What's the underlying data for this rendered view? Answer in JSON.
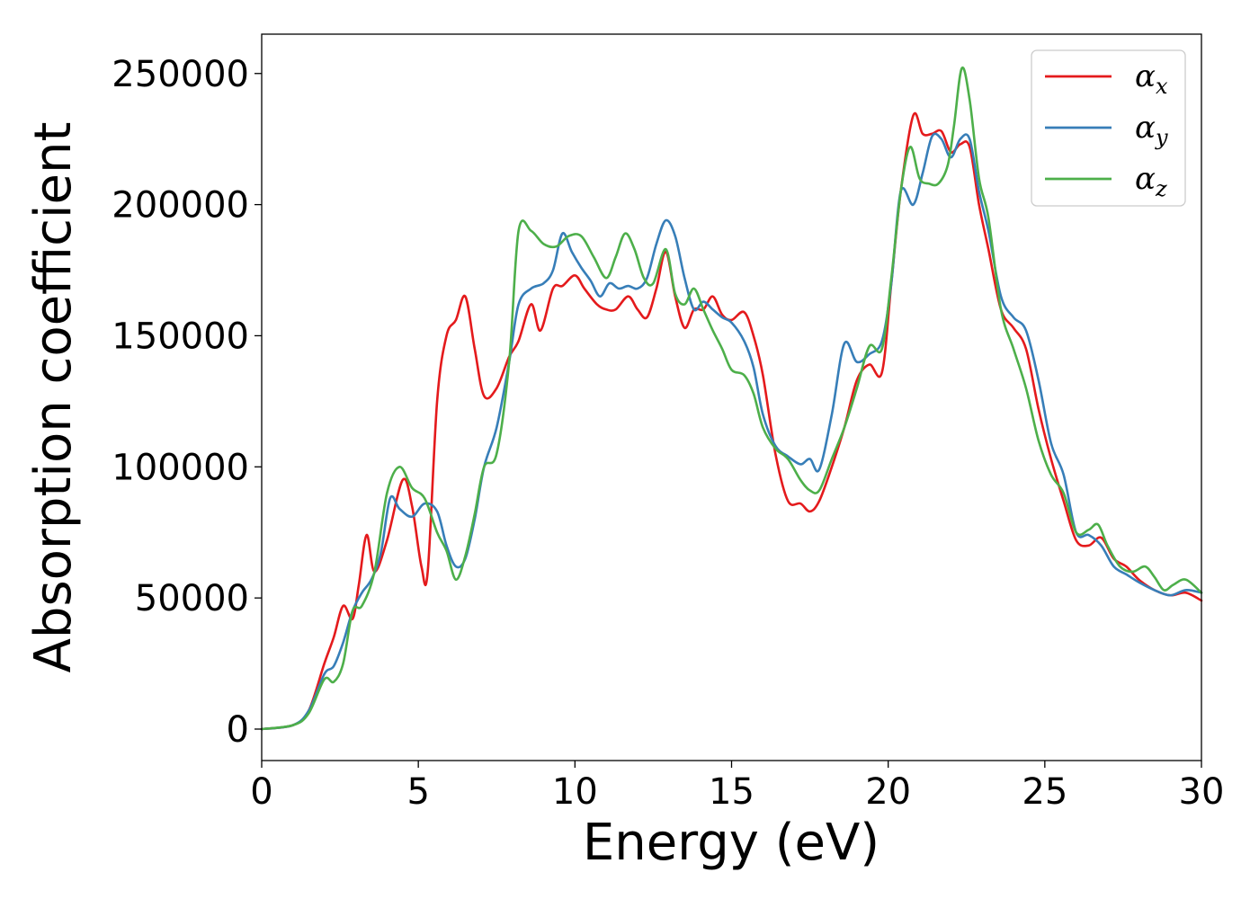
{
  "chart_data": {
    "type": "line",
    "title": "",
    "xlabel": "Energy (eV)",
    "ylabel": "Absorption coefficient",
    "xlim": [
      0,
      30
    ],
    "ylim": [
      -12000,
      265000
    ],
    "xticks": [
      "0",
      "5",
      "10",
      "15",
      "20",
      "25",
      "30"
    ],
    "xtick_values": [
      0,
      5,
      10,
      15,
      20,
      25,
      30
    ],
    "yticks": [
      "0",
      "50000",
      "100000",
      "150000",
      "200000",
      "250000"
    ],
    "ytick_values": [
      0,
      50000,
      100000,
      150000,
      200000,
      250000
    ],
    "grid": false,
    "legend_position": "top-right",
    "series": [
      {
        "name": "α",
        "subscript": "x",
        "color": "#e41a1c",
        "x": [
          0,
          1,
          1.5,
          2,
          2.3,
          2.6,
          2.9,
          3.1,
          3.35,
          3.6,
          4.0,
          4.5,
          4.8,
          5.1,
          5.3,
          5.6,
          5.9,
          6.2,
          6.5,
          6.8,
          7.1,
          7.5,
          7.9,
          8.2,
          8.6,
          8.9,
          9.3,
          9.6,
          10.0,
          10.3,
          10.7,
          11.0,
          11.3,
          11.7,
          12.0,
          12.3,
          12.6,
          12.9,
          13.2,
          13.5,
          13.8,
          14.1,
          14.4,
          14.7,
          15.0,
          15.4,
          15.7,
          16.0,
          16.4,
          16.8,
          17.2,
          17.5,
          17.8,
          18.2,
          18.6,
          19.0,
          19.4,
          19.8,
          20.1,
          20.4,
          20.8,
          21.1,
          21.4,
          21.7,
          22.0,
          22.3,
          22.6,
          22.9,
          23.2,
          23.6,
          24.0,
          24.4,
          24.8,
          25.2,
          25.6,
          26.0,
          26.4,
          26.8,
          27.2,
          27.6,
          28.0,
          28.5,
          29.0,
          29.5,
          30.0
        ],
        "y": [
          0,
          1500,
          7000,
          25000,
          35000,
          47000,
          42000,
          55000,
          74000,
          60000,
          72000,
          95000,
          85000,
          62000,
          60000,
          125000,
          150000,
          156000,
          165000,
          145000,
          127000,
          130000,
          142000,
          148000,
          162000,
          152000,
          168000,
          169000,
          173000,
          168000,
          162000,
          160000,
          160000,
          165000,
          160000,
          157000,
          168000,
          182000,
          165000,
          153000,
          160000,
          160000,
          165000,
          158000,
          156000,
          159000,
          150000,
          135000,
          105000,
          87000,
          86000,
          83000,
          87000,
          100000,
          115000,
          133000,
          139000,
          136000,
          170000,
          205000,
          234000,
          227000,
          227000,
          228000,
          220000,
          223000,
          222000,
          200000,
          183000,
          160000,
          153000,
          145000,
          122000,
          103000,
          87000,
          72000,
          70000,
          73000,
          65000,
          62000,
          57000,
          53000,
          51000,
          52000,
          49000
        ]
      },
      {
        "name": "α",
        "subscript": "y",
        "color": "#377eb8",
        "x": [
          0,
          1,
          1.5,
          2,
          2.3,
          2.6,
          2.9,
          3.2,
          3.5,
          3.8,
          4.1,
          4.4,
          4.8,
          5.2,
          5.6,
          5.9,
          6.2,
          6.5,
          6.8,
          7.1,
          7.5,
          7.9,
          8.2,
          8.6,
          9.0,
          9.3,
          9.6,
          9.9,
          10.2,
          10.5,
          10.8,
          11.1,
          11.4,
          11.7,
          12.0,
          12.3,
          12.6,
          12.9,
          13.2,
          13.5,
          13.8,
          14.1,
          14.4,
          14.7,
          15.0,
          15.4,
          15.7,
          16.0,
          16.4,
          16.8,
          17.2,
          17.5,
          17.8,
          18.2,
          18.6,
          19.0,
          19.4,
          19.8,
          20.1,
          20.4,
          20.8,
          21.1,
          21.4,
          21.7,
          22.0,
          22.3,
          22.6,
          22.9,
          23.2,
          23.6,
          24.0,
          24.4,
          24.8,
          25.2,
          25.6,
          26.0,
          26.4,
          26.8,
          27.2,
          27.6,
          28.0,
          28.5,
          29.0,
          29.5,
          30.0
        ],
        "y": [
          0,
          1500,
          7000,
          21000,
          24000,
          33000,
          45000,
          52000,
          57000,
          67000,
          88000,
          84000,
          81000,
          86000,
          83000,
          70000,
          62000,
          65000,
          80000,
          100000,
          115000,
          140000,
          162000,
          168000,
          170000,
          175000,
          189000,
          182000,
          176000,
          171000,
          165000,
          170000,
          168000,
          169000,
          168000,
          172000,
          185000,
          194000,
          188000,
          172000,
          160000,
          163000,
          160000,
          157000,
          155000,
          148000,
          138000,
          120000,
          108000,
          104000,
          101000,
          103000,
          99000,
          120000,
          147000,
          140000,
          143000,
          148000,
          170000,
          205000,
          200000,
          212000,
          226000,
          225000,
          218000,
          225000,
          225000,
          205000,
          190000,
          165000,
          157000,
          152000,
          133000,
          109000,
          97000,
          75000,
          74000,
          70000,
          62000,
          59000,
          56000,
          53000,
          51000,
          53000,
          52000
        ]
      },
      {
        "name": "α",
        "subscript": "z",
        "color": "#4daf4a",
        "x": [
          0,
          1,
          1.5,
          2,
          2.3,
          2.6,
          2.9,
          3.2,
          3.6,
          4.0,
          4.4,
          4.8,
          5.2,
          5.6,
          5.9,
          6.2,
          6.5,
          6.8,
          7.1,
          7.5,
          7.9,
          8.2,
          8.6,
          9.0,
          9.4,
          9.8,
          10.2,
          10.6,
          11.0,
          11.3,
          11.6,
          11.9,
          12.2,
          12.5,
          12.9,
          13.2,
          13.5,
          13.8,
          14.1,
          14.4,
          14.7,
          15.0,
          15.4,
          15.7,
          16.0,
          16.4,
          16.8,
          17.2,
          17.5,
          17.8,
          18.2,
          18.6,
          19.0,
          19.4,
          19.8,
          20.1,
          20.4,
          20.7,
          21.0,
          21.3,
          21.6,
          21.9,
          22.1,
          22.35,
          22.6,
          22.9,
          23.2,
          23.6,
          24.0,
          24.4,
          24.8,
          25.2,
          25.6,
          26.0,
          26.4,
          26.7,
          27.0,
          27.4,
          27.8,
          28.2,
          28.5,
          28.8,
          29.1,
          29.5,
          30.0
        ],
        "y": [
          0,
          1500,
          6000,
          19000,
          18000,
          25000,
          45000,
          47000,
          60000,
          90000,
          100000,
          92000,
          88000,
          75000,
          68000,
          57000,
          66000,
          82000,
          100000,
          105000,
          140000,
          190000,
          190000,
          185000,
          184000,
          188000,
          188000,
          180000,
          172000,
          180000,
          189000,
          183000,
          172000,
          170000,
          183000,
          166000,
          162000,
          168000,
          160000,
          152000,
          145000,
          137000,
          135000,
          128000,
          115000,
          107000,
          103000,
          95000,
          91000,
          91000,
          103000,
          115000,
          130000,
          146000,
          145000,
          172000,
          205000,
          222000,
          210000,
          208000,
          208000,
          215000,
          230000,
          252000,
          240000,
          210000,
          195000,
          160000,
          145000,
          130000,
          110000,
          97000,
          90000,
          75000,
          76000,
          78000,
          70000,
          62000,
          60000,
          62000,
          58000,
          53000,
          55000,
          57000,
          52000
        ]
      }
    ]
  }
}
